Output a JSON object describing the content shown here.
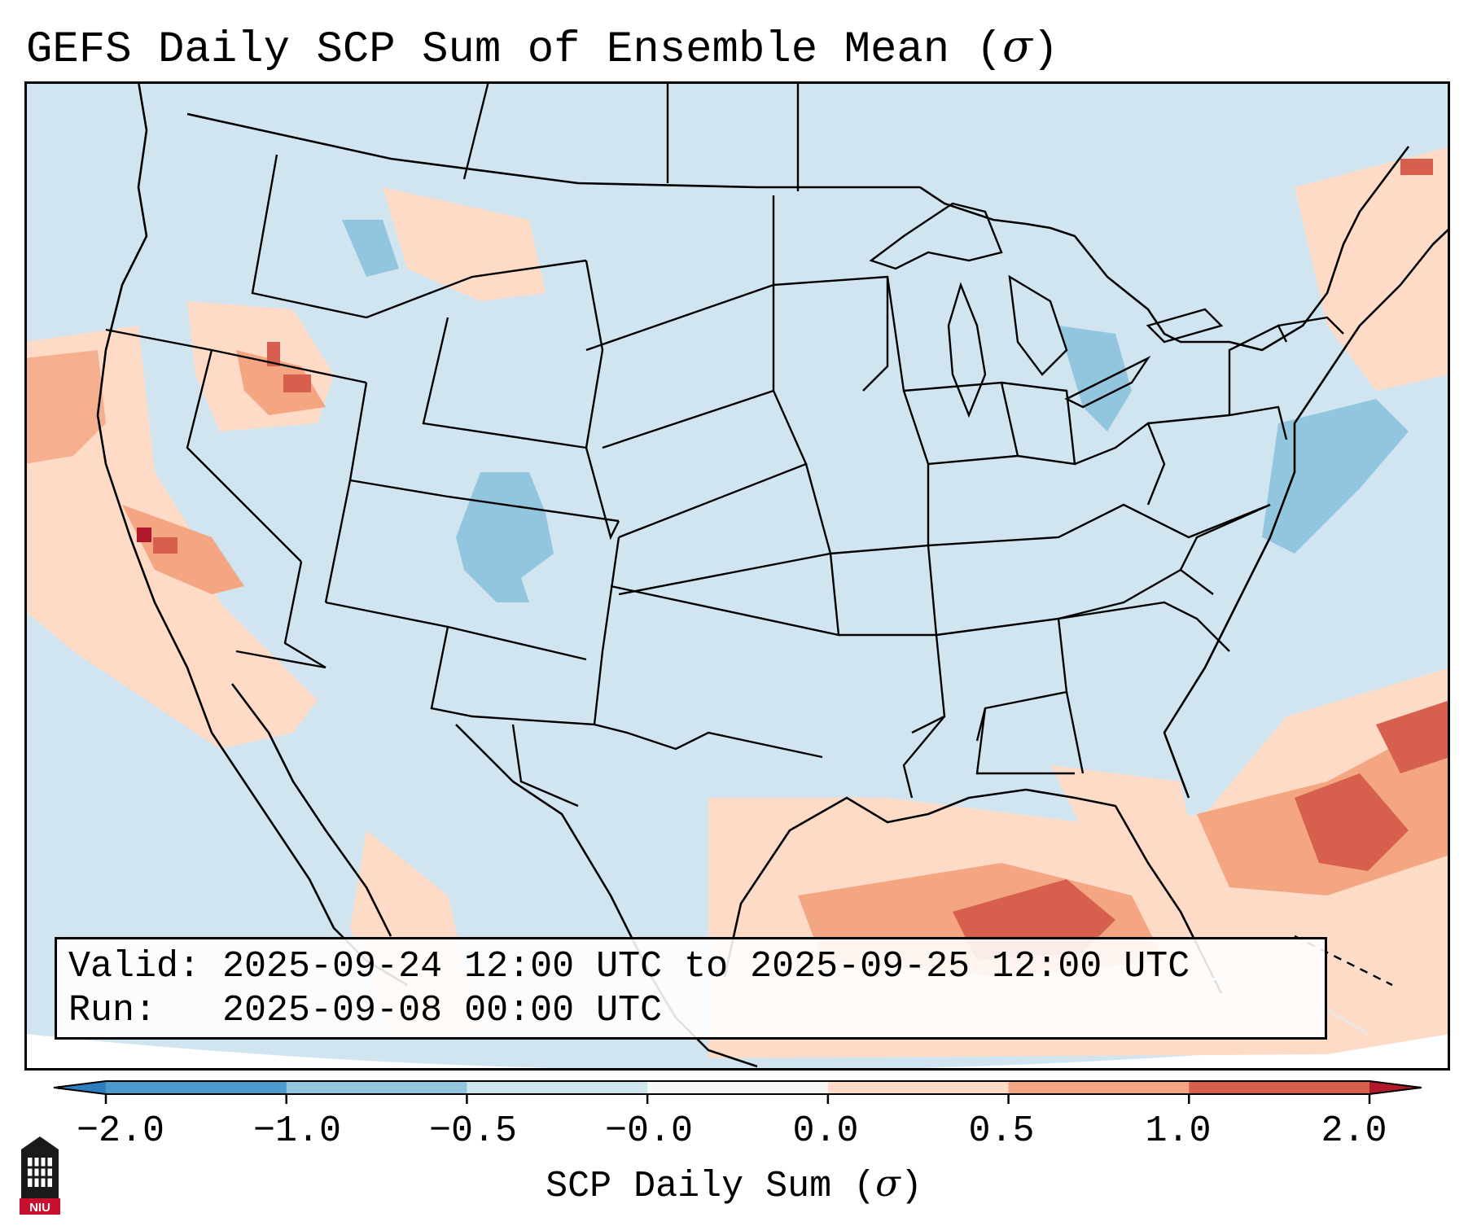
{
  "title": {
    "text": "GEFS Daily SCP Sum of Ensemble Mean (",
    "symbol": "σ",
    "suffix": ")"
  },
  "info_box": {
    "valid_line": "Valid: 2025-09-24 12:00 UTC to 2025-09-25 12:00 UTC",
    "run_line": "Run:   2025-09-08 00:00 UTC"
  },
  "colorbar": {
    "ticks": [
      "−2.0",
      "−1.0",
      "−0.5",
      "−0.0",
      "0.0",
      "0.5",
      "1.0",
      "2.0"
    ],
    "segment_colors": [
      "#2e7dbc",
      "#4a9bcc",
      "#92c5de",
      "#d1e5f0",
      "#f7f7f7",
      "#fddbc7",
      "#f4a582",
      "#d6604d",
      "#b2182b"
    ],
    "label": "SCP Daily Sum (",
    "label_symbol": "σ",
    "label_suffix": ")"
  },
  "map_colors": {
    "ocean_neutral": "#d1e5f0",
    "land_neutral": "#d1e5f0",
    "light_positive": "#fddbc7",
    "moderate_positive": "#f4a582",
    "strong_positive": "#d6604d",
    "very_strong_positive": "#b2182b",
    "light_negative": "#92c5de",
    "border": "#000000"
  },
  "logo": {
    "text": "NIU"
  }
}
